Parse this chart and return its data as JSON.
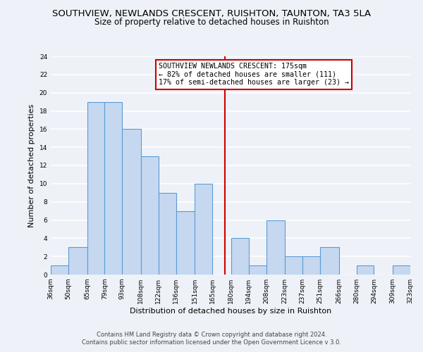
{
  "title": "SOUTHVIEW, NEWLANDS CRESCENT, RUISHTON, TAUNTON, TA3 5LA",
  "subtitle": "Size of property relative to detached houses in Ruishton",
  "xlabel": "Distribution of detached houses by size in Ruishton",
  "ylabel": "Number of detached properties",
  "bin_edges": [
    36,
    50,
    65,
    79,
    93,
    108,
    122,
    136,
    151,
    165,
    180,
    194,
    208,
    223,
    237,
    251,
    266,
    280,
    294,
    309,
    323
  ],
  "counts": [
    1,
    3,
    19,
    19,
    16,
    13,
    9,
    7,
    10,
    0,
    4,
    1,
    6,
    2,
    2,
    3,
    0,
    1,
    0,
    1
  ],
  "bar_color": "#c5d8f0",
  "bar_edge_color": "#5b9bd5",
  "reference_line_x": 175,
  "reference_line_color": "#cc0000",
  "annotation_line1": "SOUTHVIEW NEWLANDS CRESCENT: 175sqm",
  "annotation_line2": "← 82% of detached houses are smaller (111)",
  "annotation_line3": "17% of semi-detached houses are larger (23) →",
  "ylim": [
    0,
    24
  ],
  "yticks": [
    0,
    2,
    4,
    6,
    8,
    10,
    12,
    14,
    16,
    18,
    20,
    22,
    24
  ],
  "tick_labels": [
    "36sqm",
    "50sqm",
    "65sqm",
    "79sqm",
    "93sqm",
    "108sqm",
    "122sqm",
    "136sqm",
    "151sqm",
    "165sqm",
    "180sqm",
    "194sqm",
    "208sqm",
    "223sqm",
    "237sqm",
    "251sqm",
    "266sqm",
    "280sqm",
    "294sqm",
    "309sqm",
    "323sqm"
  ],
  "footer_line1": "Contains HM Land Registry data © Crown copyright and database right 2024.",
  "footer_line2": "Contains public sector information licensed under the Open Government Licence v 3.0.",
  "background_color": "#eef2f8",
  "grid_color": "#ffffff",
  "title_fontsize": 9.5,
  "subtitle_fontsize": 8.5,
  "axis_label_fontsize": 8,
  "tick_fontsize": 6.5,
  "footer_fontsize": 6,
  "annotation_fontsize": 7.2
}
